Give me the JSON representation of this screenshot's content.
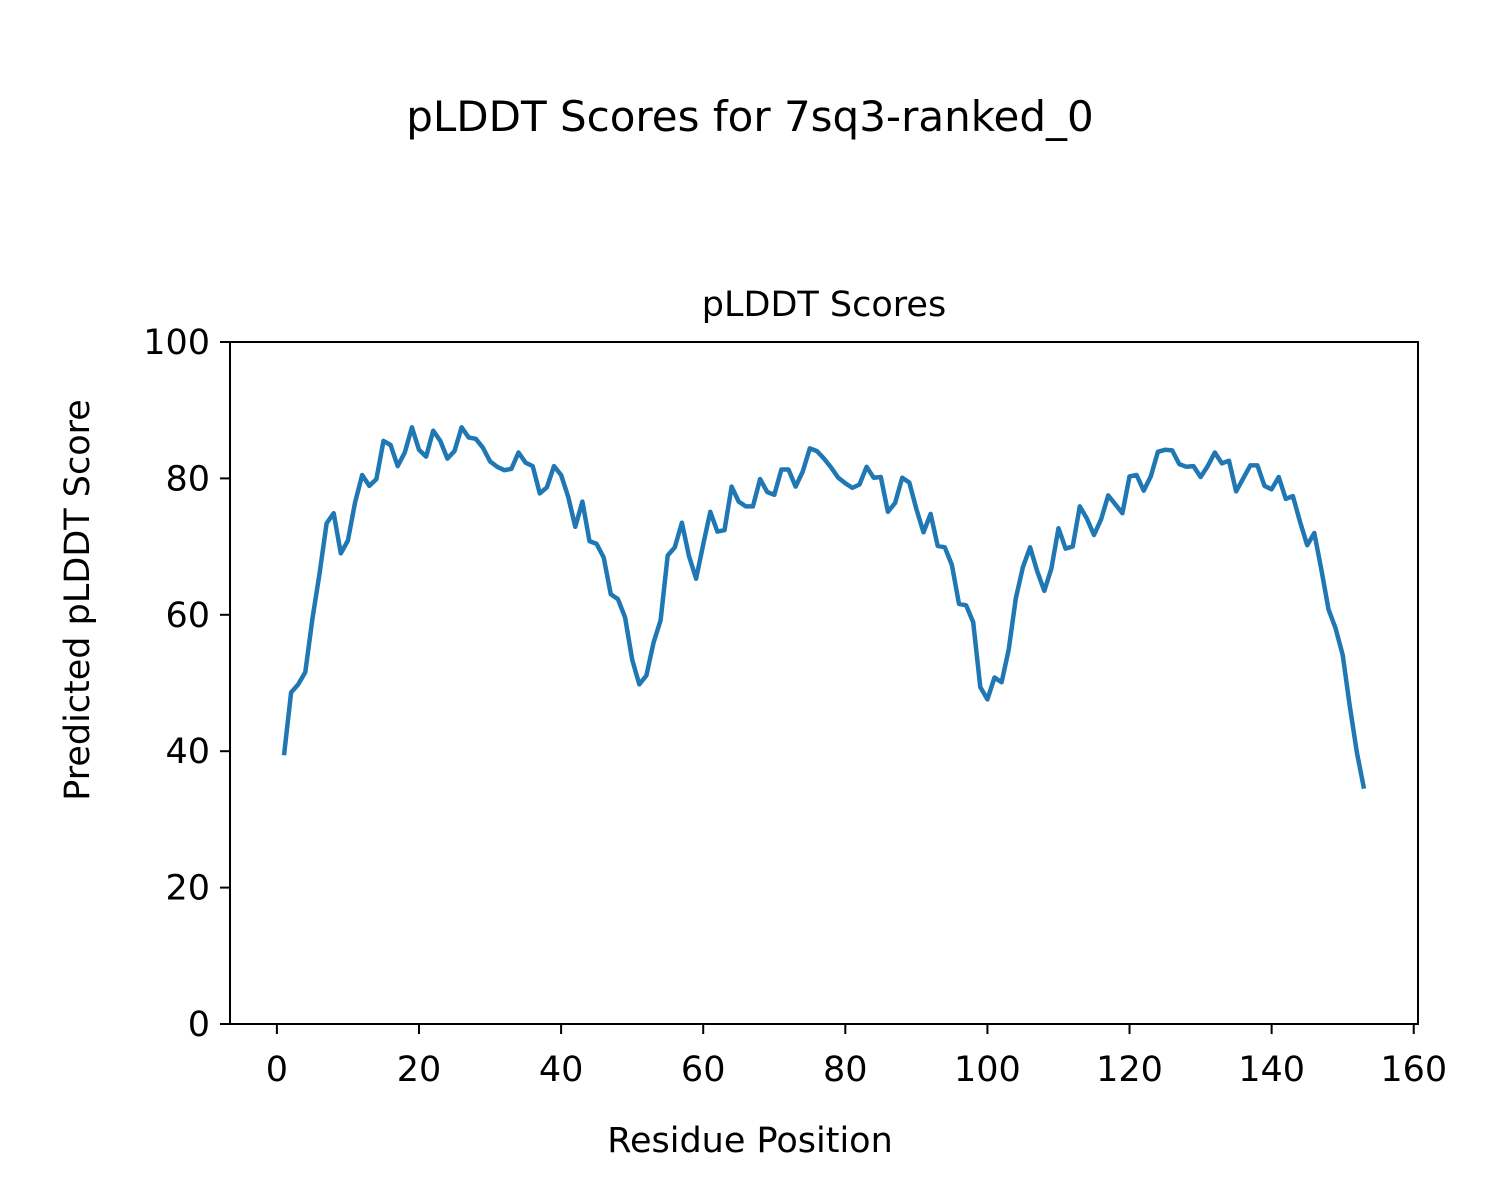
{
  "figure": {
    "suptitle": "pLDDT Scores for 7sq3-ranked_0"
  },
  "chart_data": {
    "type": "line",
    "title": "pLDDT Scores",
    "xlabel": "Residue Position",
    "ylabel": "Predicted pLDDT Score",
    "xlim": [
      -6.6,
      160.6
    ],
    "ylim": [
      0,
      100
    ],
    "xticks": [
      0,
      20,
      40,
      60,
      80,
      100,
      120,
      140,
      160
    ],
    "yticks": [
      0,
      20,
      40,
      60,
      80,
      100
    ],
    "grid": false,
    "legend": "none",
    "series": [
      {
        "color": "#1f77b4",
        "x": [
          1,
          2,
          3,
          4,
          5,
          6,
          7,
          8,
          9,
          10,
          11,
          12,
          13,
          14,
          15,
          16,
          17,
          18,
          19,
          20,
          21,
          22,
          23,
          24,
          25,
          26,
          27,
          28,
          29,
          30,
          31,
          32,
          33,
          34,
          35,
          36,
          37,
          38,
          39,
          40,
          41,
          42,
          43,
          44,
          45,
          46,
          47,
          48,
          49,
          50,
          51,
          52,
          53,
          54,
          55,
          56,
          57,
          58,
          59,
          60,
          61,
          62,
          63,
          64,
          65,
          66,
          67,
          68,
          69,
          70,
          71,
          72,
          73,
          74,
          75,
          76,
          77,
          78,
          79,
          80,
          81,
          82,
          83,
          84,
          85,
          86,
          87,
          88,
          89,
          90,
          91,
          92,
          93,
          94,
          95,
          96,
          97,
          98,
          99,
          100,
          101,
          102,
          103,
          104,
          105,
          106,
          107,
          108,
          109,
          110,
          111,
          112,
          113,
          114,
          115,
          116,
          117,
          118,
          119,
          120,
          121,
          122,
          123,
          124,
          125,
          126,
          127,
          128,
          129,
          130,
          131,
          132,
          133,
          134,
          135,
          136,
          137,
          138,
          139,
          140,
          141,
          142,
          143,
          144,
          145,
          146,
          147,
          148,
          149,
          150,
          151,
          152,
          153
        ],
        "y": [
          39.4,
          48.6,
          49.8,
          51.6,
          59.4,
          66.0,
          73.4,
          74.9,
          69.0,
          70.9,
          76.5,
          80.5,
          78.9,
          79.9,
          85.5,
          84.9,
          81.8,
          83.8,
          87.5,
          84.2,
          83.2,
          87.0,
          85.5,
          82.9,
          84.0,
          87.5,
          86.0,
          85.8,
          84.5,
          82.5,
          81.7,
          81.2,
          81.4,
          83.8,
          82.3,
          81.8,
          77.8,
          78.7,
          81.8,
          80.5,
          77.3,
          72.9,
          76.6,
          70.8,
          70.4,
          68.4,
          63.0,
          62.3,
          59.6,
          53.4,
          49.8,
          51.1,
          55.9,
          59.2,
          68.7,
          69.9,
          73.5,
          68.6,
          65.3,
          70.3,
          75.1,
          72.2,
          72.4,
          78.8,
          76.6,
          75.9,
          75.9,
          79.9,
          78.0,
          77.6,
          81.3,
          81.3,
          78.8,
          81.0,
          84.4,
          84.0,
          82.9,
          81.6,
          80.1,
          79.3,
          78.6,
          79.1,
          81.7,
          80.1,
          80.2,
          75.1,
          76.4,
          80.1,
          79.4,
          75.5,
          72.1,
          74.8,
          70.1,
          69.9,
          67.3,
          61.6,
          61.4,
          58.9,
          49.4,
          47.6,
          50.8,
          50.1,
          54.9,
          62.4,
          67.0,
          69.9,
          66.4,
          63.5,
          66.8,
          72.7,
          69.7,
          70.0,
          75.9,
          74.1,
          71.7,
          74.0,
          77.5,
          76.2,
          74.9,
          80.3,
          80.5,
          78.2,
          80.3,
          83.9,
          84.2,
          84.1,
          82.1,
          81.7,
          81.8,
          80.2,
          81.8,
          83.8,
          82.2,
          82.6,
          78.1,
          80.0,
          81.9,
          81.9,
          78.9,
          78.4,
          80.2,
          77.0,
          77.4,
          73.6,
          70.2,
          72.0,
          66.6,
          60.8,
          58.0,
          54.1,
          46.6,
          39.8,
          34.5
        ]
      }
    ]
  }
}
